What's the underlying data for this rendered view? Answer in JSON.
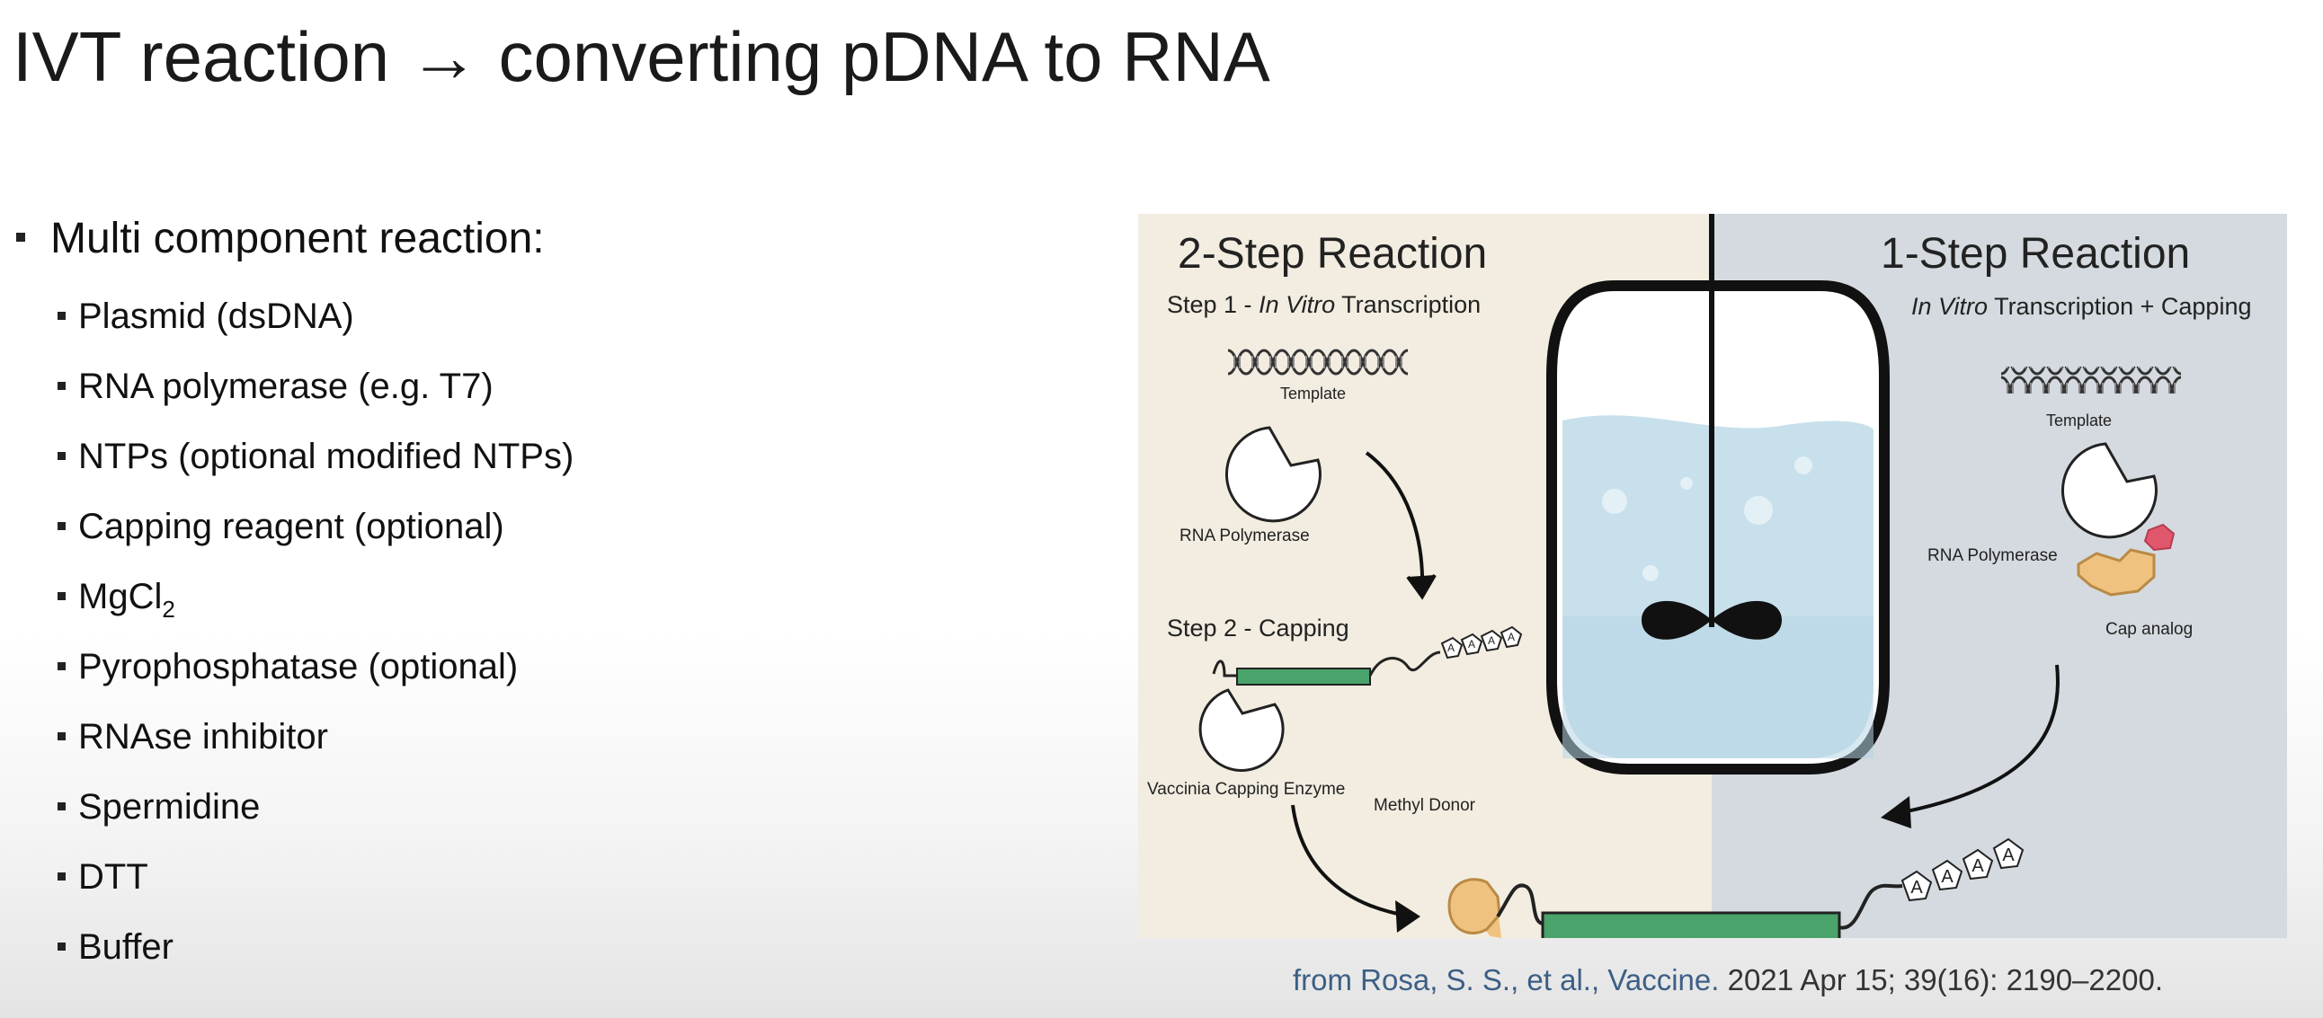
{
  "title": "IVT reaction → converting pDNA to RNA",
  "bullets": {
    "main": "Multi component reaction:",
    "items": [
      "Plasmid (dsDNA)",
      "RNA polymerase (e.g. T7)",
      "NTPs (optional modified NTPs)",
      "Capping reagent (optional)",
      "MgCl",
      "Pyrophosphatase (optional)",
      "RNAse inhibitor",
      "Spermidine",
      "DTT",
      "Buffer"
    ],
    "mgcl_subscript": "2"
  },
  "figure": {
    "left_title": "2-Step Reaction",
    "right_title": "1-Step Reaction",
    "step1_prefix": "Step 1 - ",
    "step1_italic": "In Vitro",
    "step1_suffix": " Transcription",
    "right_sub_italic": "In Vitro",
    "right_sub_suffix": " Transcription + Capping",
    "template_left": "Template",
    "template_right": "Template",
    "rna_pol_left": "RNA Polymerase",
    "rna_pol_right": "RNA Polymerase",
    "step2": "Step 2 - Capping",
    "vaccinia": "Vaccinia Capping Enzyme",
    "methyl": "Methyl Donor",
    "cap_analog": "Cap analog",
    "poly_a": "A",
    "colors": {
      "left_bg": "#f2ede0",
      "right_bg": "#d4dadf",
      "rna_green": "#49a36a",
      "cap_orange": "#f0c27f",
      "cap_red": "#e0566b",
      "liquid": "#c7e0ec"
    }
  },
  "citation": {
    "source": "from Rosa, S. S., et al., Vaccine.",
    "details": " 2021 Apr 15; 39(16): 2190–2200."
  }
}
